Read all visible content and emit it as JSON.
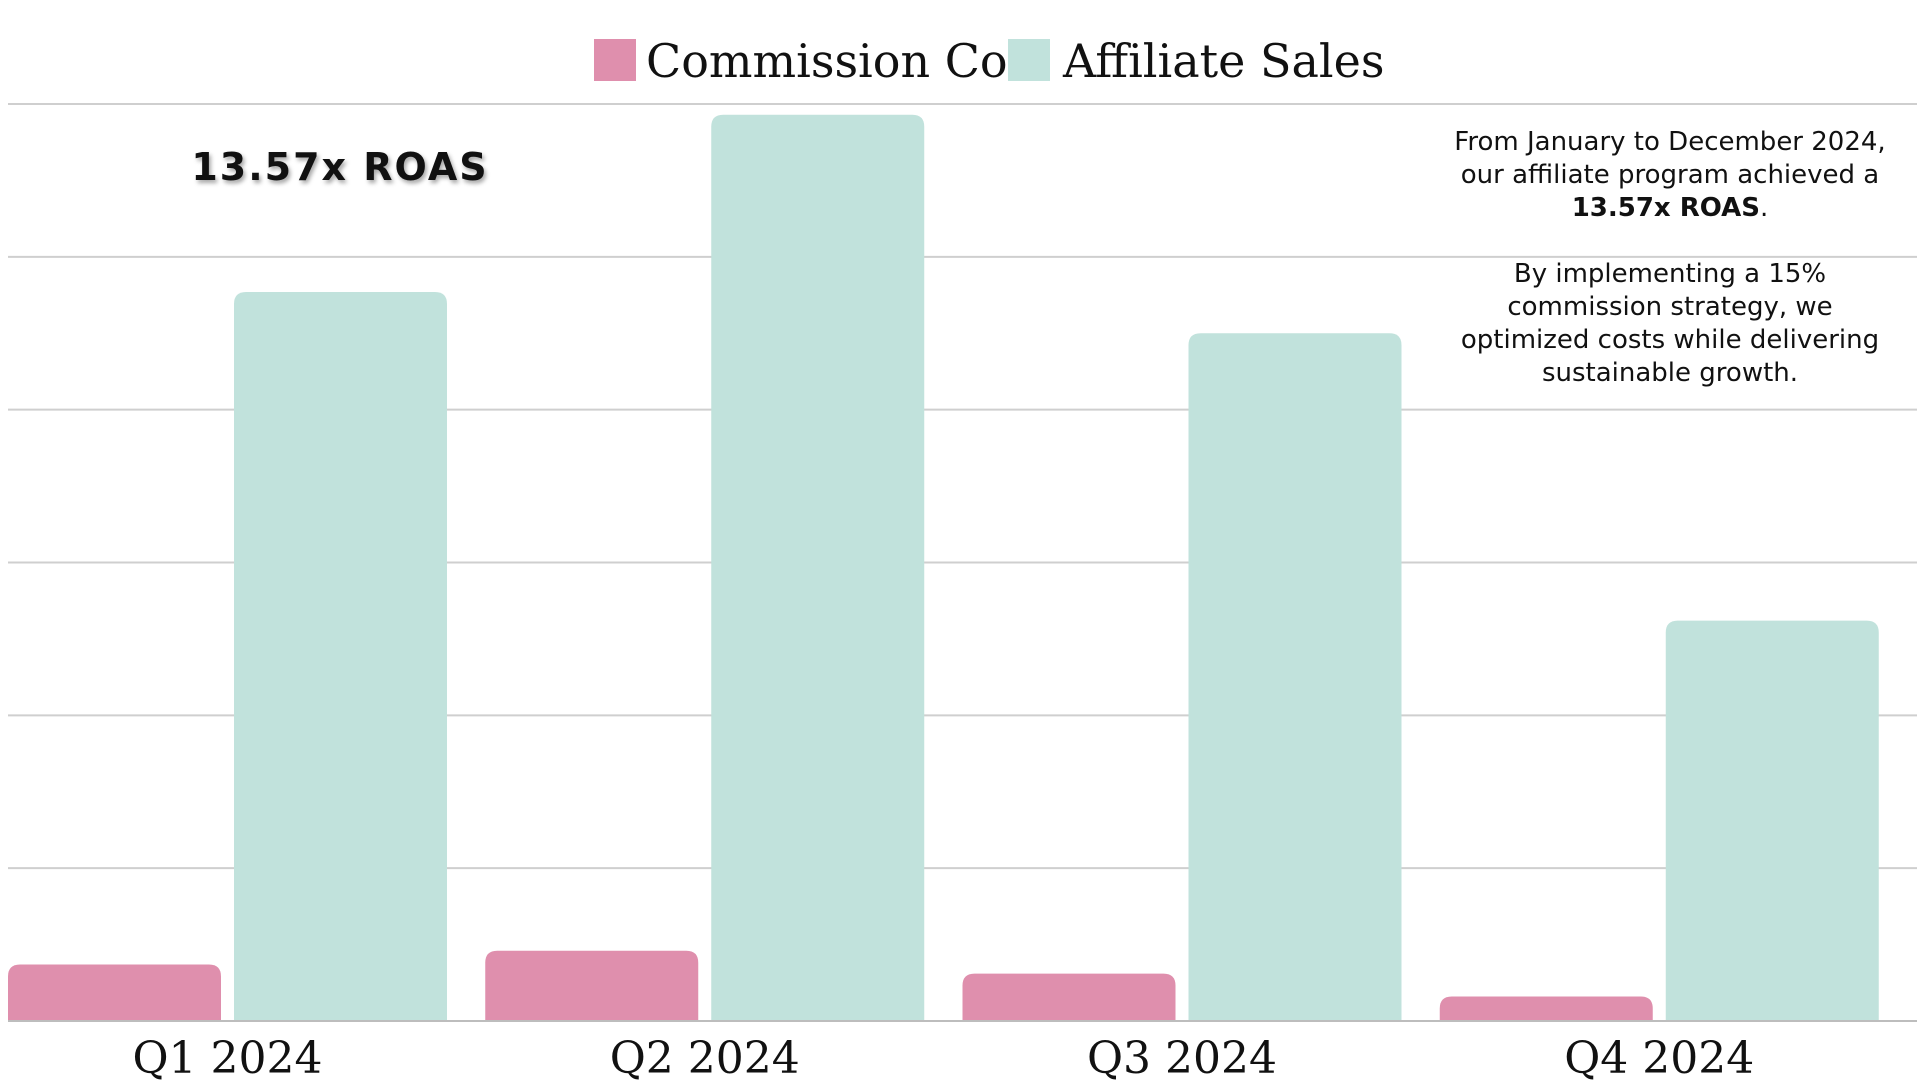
{
  "chart_data": {
    "type": "bar",
    "categories": [
      "Q1 2024",
      "Q2 2024",
      "Q3 2024",
      "Q4 2024"
    ],
    "series": [
      {
        "name": "Commission Cost",
        "color": "#df8fad",
        "values": [
          0.37,
          0.46,
          0.31,
          0.16
        ]
      },
      {
        "name": "Affiliate Sales",
        "color": "#c1e2dc",
        "values": [
          4.77,
          5.93,
          4.5,
          2.62
        ]
      }
    ],
    "ylim": [
      0,
      6
    ],
    "grid": true,
    "legend_position": "top-center",
    "title": "",
    "xlabel": "",
    "ylabel": ""
  },
  "roas_badge": "13.57x ROAS",
  "annotation": {
    "p1_before": "From January to December 2024, our affiliate program achieved a",
    "p1_bold": "13.57x ROAS",
    "p1_after": ".",
    "p2": "By implementing a 15% commission strategy, we optimized costs while delivering sustainable growth."
  }
}
